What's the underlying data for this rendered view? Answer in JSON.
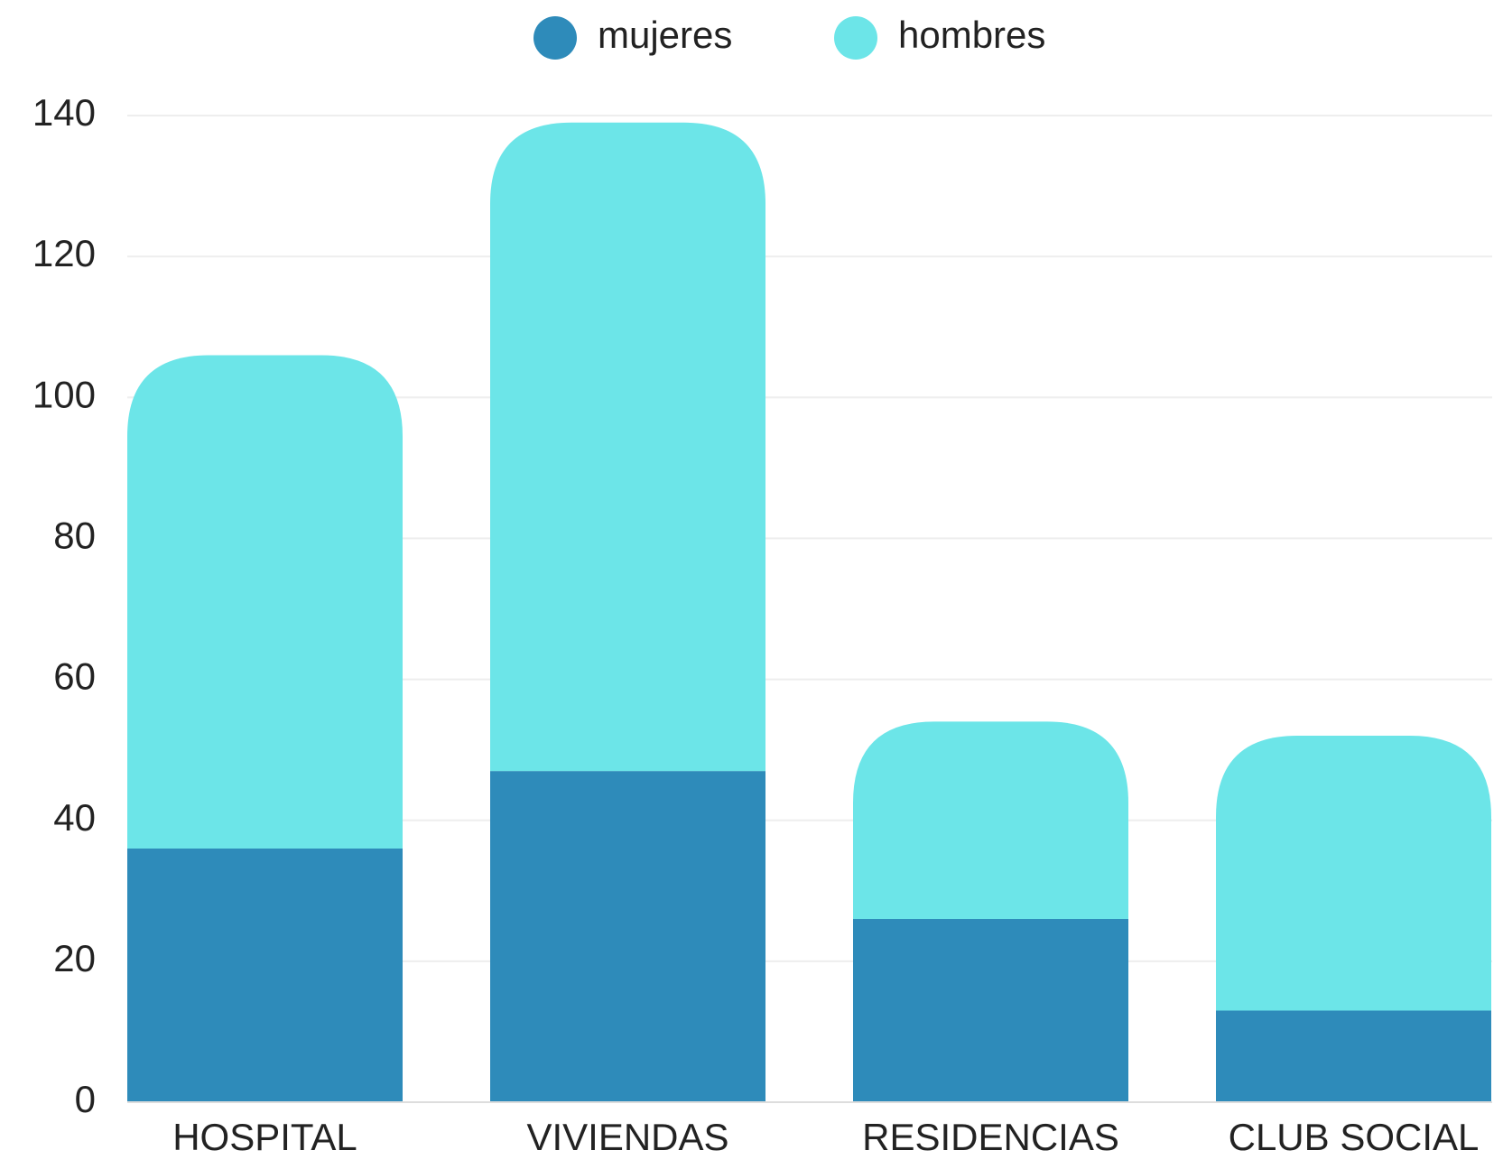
{
  "chart_data": {
    "type": "stacked-bar",
    "categories": [
      "HOSPITAL",
      "VIVIENDAS",
      "RESIDENCIAS",
      "CLUB SOCIAL"
    ],
    "series": [
      {
        "name": "mujeres",
        "color": "#2e8bba",
        "values": [
          36,
          47,
          26,
          13
        ]
      },
      {
        "name": "hombres",
        "color": "#6ce5e8",
        "values": [
          70,
          92,
          28,
          39
        ]
      }
    ],
    "ylim": [
      0,
      140
    ],
    "yticks": [
      0,
      20,
      40,
      60,
      80,
      100,
      120,
      140
    ],
    "grid": true,
    "legend": "top"
  }
}
